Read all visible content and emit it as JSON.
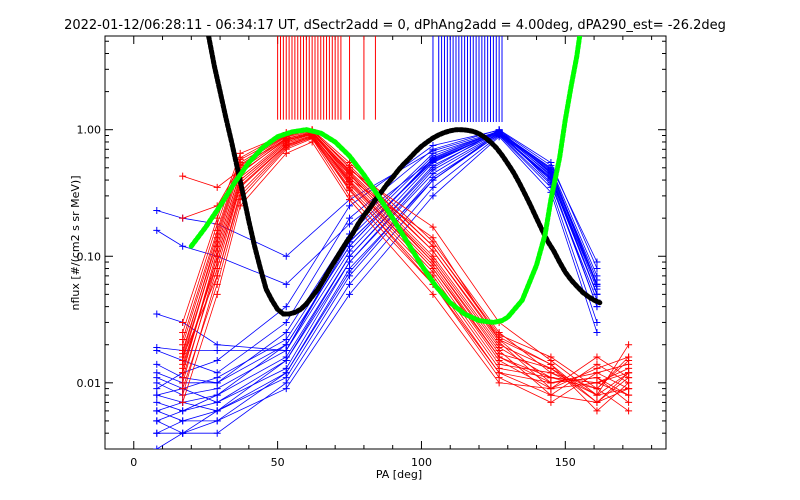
{
  "chart_data": {
    "type": "line",
    "title": "2022-01-12/06:28:11 - 06:34:17 UT, dSectr2add = 0, dPhAng2add = 4.00deg, dPA290_est= -26.2deg",
    "xlabel": "PA [deg]",
    "ylabel": "nflux [#/(cm2 s sr MeV)]",
    "xlim": [
      -10,
      185
    ],
    "ylim": [
      0.003,
      5.5
    ],
    "y_scale": "log",
    "x_ticks": [
      0,
      50,
      100,
      150
    ],
    "x_tick_labels": [
      "0",
      "50",
      "100",
      "150"
    ],
    "y_ticks": [
      0.01,
      0.1,
      1.0
    ],
    "y_tick_labels": [
      "0.01",
      "0.10",
      "1.00"
    ],
    "grid": false,
    "colors": {
      "red_traces": "#ff0000",
      "blue_traces": "#0000ff",
      "black_fit": "#000000",
      "green_fit": "#00ff00"
    },
    "bin_pa": [
      8,
      17,
      29,
      53,
      75,
      104,
      127,
      145,
      161,
      172
    ],
    "red_marker_pa": [
      17,
      29,
      37,
      53,
      62,
      75,
      104,
      127,
      145,
      161,
      172
    ],
    "red_vertical_lines_pa": [
      50,
      51,
      52,
      53,
      54,
      55,
      56,
      57,
      58,
      59,
      60,
      61,
      62,
      63,
      64,
      65,
      66,
      67,
      68,
      69,
      70,
      71,
      72,
      75,
      80,
      84
    ],
    "blue_vertical_lines_pa": [
      104,
      106,
      107,
      108,
      109,
      110,
      111,
      112,
      113,
      114,
      115,
      116,
      117,
      118,
      119,
      120,
      121,
      122,
      123,
      124,
      125,
      126,
      127,
      128
    ],
    "red_series": [
      {
        "pa": [
          17,
          29,
          37,
          53,
          62,
          75,
          104,
          127,
          145,
          161,
          172
        ],
        "values": [
          0.016,
          0.12,
          0.45,
          0.85,
          0.95,
          0.42,
          0.09,
          0.018,
          0.008,
          0.007,
          0.012
        ]
      },
      {
        "pa": [
          17,
          29,
          37,
          53,
          62,
          75,
          104,
          127,
          145,
          161,
          172
        ],
        "values": [
          0.013,
          0.1,
          0.4,
          0.8,
          0.92,
          0.38,
          0.08,
          0.015,
          0.009,
          0.01,
          0.008
        ]
      },
      {
        "pa": [
          17,
          29,
          37,
          53,
          62,
          75,
          104,
          127,
          145,
          161,
          172
        ],
        "values": [
          0.011,
          0.08,
          0.35,
          0.75,
          0.88,
          0.35,
          0.07,
          0.013,
          0.011,
          0.009,
          0.015
        ]
      },
      {
        "pa": [
          17,
          29,
          37,
          53,
          62,
          75,
          104,
          127,
          145,
          161,
          172
        ],
        "values": [
          0.02,
          0.15,
          0.55,
          0.9,
          1.0,
          0.5,
          0.11,
          0.022,
          0.014,
          0.006,
          0.01
        ]
      },
      {
        "pa": [
          17,
          29,
          37,
          53,
          62,
          75,
          104,
          127,
          145,
          161,
          172
        ],
        "values": [
          0.009,
          0.06,
          0.28,
          0.7,
          0.85,
          0.3,
          0.06,
          0.011,
          0.007,
          0.012,
          0.009
        ]
      },
      {
        "pa": [
          17,
          29,
          37,
          53,
          62,
          75,
          104,
          127,
          145,
          161,
          172
        ],
        "values": [
          0.025,
          0.18,
          0.6,
          0.95,
          1.0,
          0.55,
          0.13,
          0.025,
          0.012,
          0.008,
          0.02
        ]
      },
      {
        "pa": [
          17,
          29,
          37,
          53,
          62,
          75,
          104,
          127,
          145,
          161,
          172
        ],
        "values": [
          0.014,
          0.09,
          0.38,
          0.78,
          0.9,
          0.4,
          0.085,
          0.016,
          0.01,
          0.011,
          0.007
        ]
      },
      {
        "pa": [
          17,
          29,
          37,
          53,
          62,
          75,
          104,
          127,
          145,
          161,
          172
        ],
        "values": [
          0.018,
          0.13,
          0.5,
          0.88,
          0.96,
          0.46,
          0.1,
          0.02,
          0.013,
          0.007,
          0.011
        ]
      },
      {
        "pa": [
          17,
          29,
          37,
          53,
          62,
          75,
          104,
          127,
          145,
          161,
          172
        ],
        "values": [
          0.007,
          0.05,
          0.25,
          0.65,
          0.8,
          0.28,
          0.05,
          0.01,
          0.009,
          0.013,
          0.016
        ]
      },
      {
        "pa": [
          17,
          29,
          37,
          53,
          62,
          75,
          104,
          127,
          145,
          161,
          172
        ],
        "values": [
          0.03,
          0.2,
          0.65,
          0.92,
          0.98,
          0.52,
          0.12,
          0.024,
          0.016,
          0.009,
          0.006
        ]
      },
      {
        "pa": [
          17,
          29,
          37,
          53,
          62,
          75,
          104,
          127,
          145,
          161,
          172
        ],
        "values": [
          0.012,
          0.11,
          0.42,
          0.82,
          0.93,
          0.44,
          0.095,
          0.019,
          0.011,
          0.01,
          0.013
        ]
      },
      {
        "pa": [
          17,
          29,
          37,
          53,
          62,
          75,
          104,
          127,
          145,
          161,
          172
        ],
        "values": [
          0.016,
          0.07,
          0.3,
          0.72,
          0.87,
          0.33,
          0.065,
          0.012,
          0.008,
          0.014,
          0.01
        ]
      },
      {
        "pa": [
          17,
          29,
          37,
          53,
          62,
          75,
          104,
          127,
          145,
          161,
          172
        ],
        "values": [
          0.43,
          0.35,
          0.48,
          0.86,
          0.94,
          0.48,
          0.17,
          0.03,
          0.015,
          0.008,
          0.012
        ]
      },
      {
        "pa": [
          17,
          29,
          37,
          53,
          62,
          75,
          104,
          127,
          145,
          161,
          172
        ],
        "values": [
          0.2,
          0.25,
          0.52,
          0.84,
          0.91,
          0.41,
          0.14,
          0.022,
          0.01,
          0.011,
          0.008
        ]
      },
      {
        "pa": [
          17,
          29,
          37,
          53,
          62,
          75,
          104,
          127,
          145,
          161,
          172
        ],
        "values": [
          0.01,
          0.09,
          0.36,
          0.76,
          0.89,
          0.37,
          0.075,
          0.014,
          0.012,
          0.009,
          0.016
        ]
      },
      {
        "pa": [
          17,
          29,
          37,
          53,
          62,
          75,
          104,
          127,
          145,
          161,
          172
        ],
        "values": [
          0.022,
          0.16,
          0.58,
          0.91,
          0.97,
          0.47,
          0.11,
          0.021,
          0.009,
          0.016,
          0.011
        ]
      },
      {
        "pa": [
          17,
          29,
          37,
          53,
          62,
          75,
          104,
          127,
          145,
          161,
          172
        ],
        "values": [
          0.015,
          0.12,
          0.46,
          0.83,
          0.94,
          0.45,
          0.09,
          0.017,
          0.013,
          0.008,
          0.009
        ]
      },
      {
        "pa": [
          17,
          29,
          37,
          53,
          62,
          75,
          104,
          127,
          145,
          161,
          172
        ],
        "values": [
          0.008,
          0.07,
          0.32,
          0.74,
          0.86,
          0.34,
          0.06,
          0.012,
          0.01,
          0.012,
          0.014
        ]
      },
      {
        "pa": [
          17,
          29,
          37,
          53,
          62,
          75,
          104,
          127,
          145,
          161,
          172
        ],
        "values": [
          0.017,
          0.14,
          0.53,
          0.89,
          0.99,
          0.5,
          0.12,
          0.023,
          0.014,
          0.007,
          0.009
        ]
      },
      {
        "pa": [
          17,
          29,
          37,
          53,
          62,
          75,
          104,
          127,
          145,
          161,
          172
        ],
        "values": [
          0.012,
          0.1,
          0.4,
          0.8,
          0.92,
          0.39,
          0.08,
          0.016,
          0.011,
          0.01,
          0.012
        ]
      }
    ],
    "blue_series": [
      {
        "pa": [
          8,
          17,
          29,
          53,
          75,
          104,
          127,
          145,
          161
        ],
        "values": [
          0.004,
          0.004,
          0.005,
          0.012,
          0.08,
          0.4,
          0.95,
          0.4,
          0.06
        ]
      },
      {
        "pa": [
          8,
          17,
          29,
          53,
          75,
          104,
          127,
          145,
          161
        ],
        "values": [
          0.006,
          0.005,
          0.006,
          0.015,
          0.1,
          0.5,
          1.0,
          0.45,
          0.05
        ]
      },
      {
        "pa": [
          8,
          17,
          29,
          53,
          75,
          104,
          127,
          145,
          161
        ],
        "values": [
          0.008,
          0.007,
          0.008,
          0.02,
          0.12,
          0.6,
          0.98,
          0.38,
          0.04
        ]
      },
      {
        "pa": [
          8,
          17,
          29,
          53,
          75,
          104,
          127,
          145,
          161
        ],
        "values": [
          0.012,
          0.01,
          0.01,
          0.025,
          0.15,
          0.65,
          0.96,
          0.5,
          0.07
        ]
      },
      {
        "pa": [
          8,
          17,
          29,
          53,
          75,
          104,
          127,
          145,
          161
        ],
        "values": [
          0.003,
          0.004,
          0.004,
          0.01,
          0.06,
          0.35,
          0.9,
          0.35,
          0.03
        ]
      },
      {
        "pa": [
          8,
          17,
          29,
          53,
          75,
          104,
          127,
          145,
          161
        ],
        "values": [
          0.018,
          0.015,
          0.012,
          0.03,
          0.2,
          0.7,
          1.0,
          0.55,
          0.08
        ]
      },
      {
        "pa": [
          8,
          17,
          29,
          53,
          75,
          104,
          127,
          145,
          161
        ],
        "values": [
          0.005,
          0.006,
          0.007,
          0.013,
          0.09,
          0.45,
          0.93,
          0.42,
          0.05
        ]
      },
      {
        "pa": [
          8,
          17,
          29,
          53,
          75,
          104,
          127,
          145,
          161
        ],
        "values": [
          0.01,
          0.008,
          0.009,
          0.018,
          0.11,
          0.55,
          0.97,
          0.48,
          0.06
        ]
      },
      {
        "pa": [
          8,
          17,
          29,
          53,
          75,
          104,
          127,
          145,
          161
        ],
        "values": [
          0.004,
          0.005,
          0.005,
          0.009,
          0.05,
          0.3,
          0.88,
          0.32,
          0.025
        ]
      },
      {
        "pa": [
          8,
          17,
          29,
          53,
          75,
          104,
          127,
          145,
          161
        ],
        "values": [
          0.009,
          0.012,
          0.015,
          0.04,
          0.25,
          0.75,
          0.99,
          0.52,
          0.09
        ]
      },
      {
        "pa": [
          8,
          17,
          29,
          53,
          75,
          104,
          127,
          145,
          161
        ],
        "values": [
          0.007,
          0.006,
          0.008,
          0.016,
          0.1,
          0.52,
          0.95,
          0.44,
          0.055
        ]
      },
      {
        "pa": [
          8,
          17,
          29,
          53,
          75,
          104,
          127,
          145,
          161
        ],
        "values": [
          0.006,
          0.007,
          0.006,
          0.011,
          0.07,
          0.4,
          0.92,
          0.4,
          0.04
        ]
      },
      {
        "pa": [
          8,
          17,
          29,
          53,
          75,
          104,
          127,
          145,
          161
        ],
        "values": [
          0.23,
          0.2,
          0.18,
          0.1,
          0.28,
          0.68,
          0.97,
          0.46,
          0.06
        ]
      },
      {
        "pa": [
          8,
          17,
          29,
          53,
          75,
          104,
          127,
          145,
          161
        ],
        "values": [
          0.16,
          0.12,
          0.1,
          0.06,
          0.18,
          0.58,
          0.94,
          0.41,
          0.05
        ]
      },
      {
        "pa": [
          8,
          17,
          29,
          53,
          75,
          104,
          127,
          145,
          161
        ],
        "values": [
          0.035,
          0.03,
          0.02,
          0.018,
          0.13,
          0.56,
          0.96,
          0.47,
          0.065
        ]
      },
      {
        "pa": [
          8,
          17,
          29,
          53,
          75,
          104,
          127,
          145,
          161
        ],
        "values": [
          0.019,
          0.018,
          0.018,
          0.018,
          0.14,
          0.62,
          0.98,
          0.43,
          0.05
        ]
      },
      {
        "pa": [
          8,
          17,
          29,
          53,
          75,
          104,
          127,
          145,
          161
        ],
        "values": [
          0.011,
          0.009,
          0.011,
          0.022,
          0.13,
          0.57,
          0.96,
          0.46,
          0.058
        ]
      },
      {
        "pa": [
          8,
          17,
          29,
          53,
          75,
          104,
          127,
          145,
          161
        ],
        "values": [
          0.005,
          0.004,
          0.006,
          0.012,
          0.075,
          0.42,
          0.91,
          0.37,
          0.045
        ]
      },
      {
        "pa": [
          8,
          17,
          29,
          53,
          75,
          104,
          127,
          145,
          161
        ],
        "values": [
          0.014,
          0.011,
          0.01,
          0.02,
          0.12,
          0.59,
          0.97,
          0.49,
          0.06
        ]
      },
      {
        "pa": [
          8,
          17,
          29,
          53,
          75,
          104,
          127,
          145,
          161
        ],
        "values": [
          0.008,
          0.009,
          0.007,
          0.015,
          0.09,
          0.48,
          0.94,
          0.41,
          0.05
        ]
      }
    ],
    "green_fit": {
      "pa": [
        20,
        25,
        30,
        35,
        40,
        45,
        50,
        55,
        60,
        65,
        70,
        75,
        80,
        85,
        90,
        95,
        100,
        105,
        110,
        115,
        120,
        125,
        128,
        130,
        135,
        140,
        143,
        145,
        148,
        150,
        152,
        154,
        155
      ],
      "values": [
        0.12,
        0.17,
        0.25,
        0.38,
        0.55,
        0.73,
        0.88,
        0.96,
        1.0,
        0.94,
        0.8,
        0.62,
        0.44,
        0.3,
        0.2,
        0.13,
        0.085,
        0.058,
        0.043,
        0.035,
        0.031,
        0.03,
        0.031,
        0.033,
        0.045,
        0.085,
        0.15,
        0.28,
        0.6,
        1.2,
        2.2,
        3.8,
        5.5
      ]
    },
    "black_fit": {
      "pa": [
        26,
        28,
        30,
        32,
        34,
        36,
        38,
        40,
        42,
        44,
        46,
        48,
        50,
        52,
        54,
        56,
        58,
        60,
        62,
        64,
        66,
        68,
        70,
        72,
        74,
        76,
        78,
        80,
        82,
        84,
        86,
        88,
        90,
        92,
        94,
        96,
        98,
        100,
        102,
        104,
        106,
        108,
        110,
        112,
        114,
        116,
        118,
        120,
        122,
        124,
        126,
        128,
        130,
        132,
        134,
        136,
        138,
        140,
        142,
        144,
        146,
        148,
        150,
        152,
        154,
        156,
        158,
        160,
        162
      ],
      "values": [
        5.5,
        3.2,
        2.0,
        1.25,
        0.8,
        0.5,
        0.31,
        0.19,
        0.12,
        0.08,
        0.055,
        0.045,
        0.038,
        0.035,
        0.035,
        0.036,
        0.038,
        0.042,
        0.048,
        0.055,
        0.065,
        0.078,
        0.093,
        0.11,
        0.13,
        0.15,
        0.18,
        0.21,
        0.24,
        0.28,
        0.32,
        0.37,
        0.42,
        0.48,
        0.54,
        0.6,
        0.67,
        0.74,
        0.8,
        0.86,
        0.91,
        0.95,
        0.98,
        1.0,
        1.0,
        0.99,
        0.97,
        0.93,
        0.87,
        0.8,
        0.72,
        0.63,
        0.54,
        0.46,
        0.38,
        0.31,
        0.25,
        0.2,
        0.16,
        0.13,
        0.11,
        0.09,
        0.075,
        0.065,
        0.058,
        0.052,
        0.048,
        0.045,
        0.043
      ]
    }
  }
}
